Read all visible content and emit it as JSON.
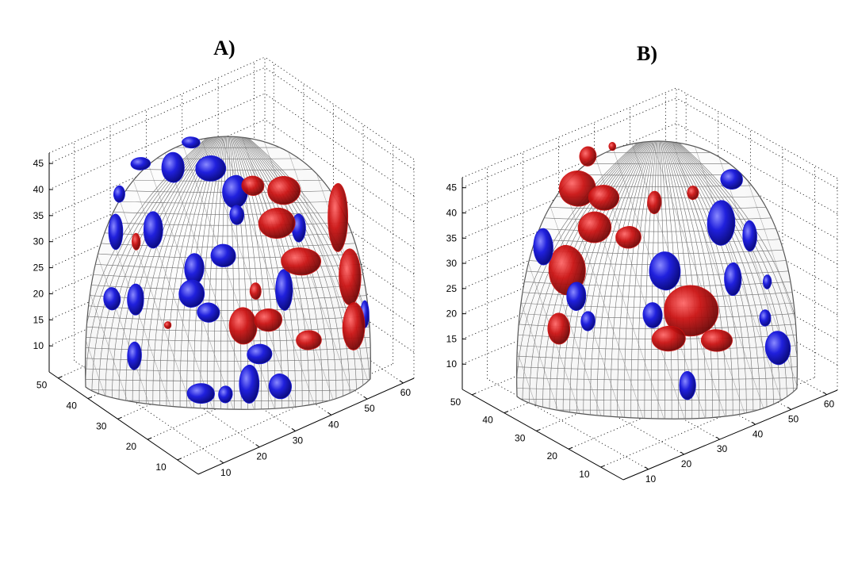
{
  "chart_data": [
    {
      "type": "surface3d",
      "panel_label": "A)",
      "x_ticks": [
        10,
        20,
        30,
        40,
        50,
        60
      ],
      "y_ticks": [
        10,
        20,
        30,
        40,
        50
      ],
      "z_ticks": [
        10,
        15,
        20,
        25,
        30,
        35,
        40,
        45
      ],
      "grid": true,
      "surface": "gray wireframe dome",
      "overlay_colors": {
        "positive": "#d01010",
        "negative": "#1818d8"
      },
      "mesh_color": "#6f6f6f"
    },
    {
      "type": "surface3d",
      "panel_label": "B)",
      "x_ticks": [
        10,
        20,
        30,
        40,
        50,
        60
      ],
      "y_ticks": [
        10,
        20,
        30,
        40,
        50
      ],
      "z_ticks": [
        10,
        15,
        20,
        25,
        30,
        35,
        40,
        45
      ],
      "grid": true,
      "surface": "gray wireframe dome",
      "overlay_colors": {
        "positive": "#d01010",
        "negative": "#1818d8"
      },
      "mesh_color": "#6f6f6f"
    }
  ]
}
